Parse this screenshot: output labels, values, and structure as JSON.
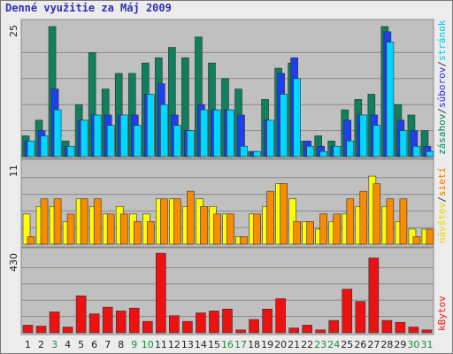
{
  "title": "Denné využitie za Máj 2009",
  "chart_data": {
    "type": "bar",
    "x": [
      "1",
      "2",
      "3",
      "4",
      "5",
      "6",
      "7",
      "8",
      "9",
      "10",
      "11",
      "12",
      "13",
      "14",
      "15",
      "16",
      "17",
      "18",
      "19",
      "20",
      "21",
      "22",
      "23",
      "24",
      "25",
      "26",
      "27",
      "28",
      "29",
      "30",
      "31"
    ],
    "weekend_days": [
      "3",
      "9",
      "10",
      "16",
      "17",
      "23",
      "24",
      "30",
      "31"
    ],
    "panels": [
      {
        "name": "visits",
        "y_label": "25",
        "ylim": [
          0,
          25
        ],
        "grid": true,
        "legend": [
          {
            "text": "zásahov",
            "color": "#00805a"
          },
          {
            "text": "/",
            "color": "#333333"
          },
          {
            "text": "súborov",
            "color": "#2b2be6"
          },
          {
            "text": "/",
            "color": "#333333"
          },
          {
            "text": "stránok",
            "color": "#00c8e8"
          }
        ],
        "series": [
          {
            "key": "hits",
            "color": "#0f7f5e",
            "values": [
              4,
              7,
              25,
              3,
              10,
              20,
              13,
              16,
              16,
              18,
              19,
              21,
              19,
              23,
              18,
              15,
              13,
              1,
              11,
              17,
              18,
              3,
              4,
              3,
              9,
              11,
              12,
              25,
              10,
              8,
              5
            ]
          },
          {
            "key": "files",
            "color": "#1e3ff0",
            "values": [
              3,
              5,
              13,
              2,
              7,
              8,
              8,
              8,
              8,
              12,
              14,
              8,
              5,
              10,
              9,
              9,
              8,
              1,
              7,
              16,
              19,
              3,
              2,
              2,
              7,
              8,
              8,
              24,
              7,
              5,
              2
            ]
          },
          {
            "key": "pages",
            "color": "#00d8ff",
            "values": [
              3,
              4,
              9,
              2,
              7,
              8,
              6,
              8,
              6,
              12,
              10,
              6,
              5,
              9,
              9,
              9,
              2,
              1,
              7,
              12,
              15,
              2,
              1,
              2,
              3,
              8,
              6,
              22,
              5,
              2,
              1
            ]
          }
        ]
      },
      {
        "name": "sites",
        "y_label": "11",
        "ylim": [
          0,
          11
        ],
        "grid": true,
        "legend": [
          {
            "text": "návštev",
            "color": "#e8d800"
          },
          {
            "text": "/",
            "color": "#333333"
          },
          {
            "text": "sietí",
            "color": "#f07800"
          }
        ],
        "series": [
          {
            "key": "visits",
            "color": "#ffff00",
            "values": [
              4,
              5,
              5,
              3,
              6,
              5,
              4,
              5,
              4,
              4,
              6,
              6,
              5,
              6,
              5,
              4,
              1,
              4,
              5,
              8,
              6,
              3,
              2,
              3,
              4,
              5,
              9,
              5,
              3,
              2,
              2
            ]
          },
          {
            "key": "sites",
            "color": "#f78c00",
            "values": [
              1,
              6,
              6,
              4,
              6,
              6,
              4,
              4,
              3,
              3,
              6,
              6,
              7,
              5,
              4,
              4,
              1,
              4,
              7,
              8,
              3,
              3,
              4,
              4,
              6,
              7,
              8,
              6,
              6,
              1,
              2
            ]
          }
        ]
      },
      {
        "name": "kbytes",
        "y_label": "430",
        "ylim": [
          0,
          430
        ],
        "grid": true,
        "legend": [
          {
            "text": "kBytov",
            "color": "#e62020"
          }
        ],
        "series": [
          {
            "key": "kbytes",
            "color": "#ee1111",
            "values": [
              40,
              35,
              110,
              30,
              195,
              100,
              135,
              115,
              130,
              60,
              420,
              90,
              60,
              105,
              115,
              125,
              15,
              70,
              125,
              180,
              25,
              40,
              15,
              65,
              230,
              165,
              395,
              65,
              55,
              30,
              15
            ]
          }
        ]
      }
    ]
  }
}
